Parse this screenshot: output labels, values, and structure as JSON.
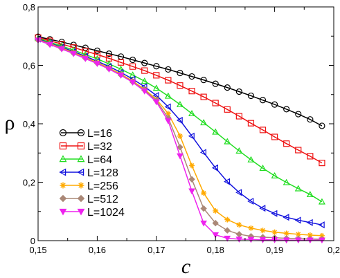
{
  "chart_data": {
    "type": "line",
    "xlabel": "c",
    "ylabel": "ρ",
    "xlim": [
      0.15,
      0.2
    ],
    "ylim": [
      0,
      0.8
    ],
    "x_ticks": [
      0.15,
      0.16,
      0.17,
      0.18,
      0.19,
      0.2
    ],
    "x_tick_labels": [
      "0,15",
      "0,16",
      "0,17",
      "0,18",
      "0,19",
      "0,2"
    ],
    "y_ticks": [
      0,
      0.2,
      0.4,
      0.6,
      0.8
    ],
    "y_tick_labels": [
      "0",
      "0,2",
      "0,4",
      "0,6",
      "0,8"
    ],
    "grid": false,
    "legend_position": "lower-left",
    "x": [
      0.15,
      0.152,
      0.154,
      0.156,
      0.158,
      0.16,
      0.162,
      0.164,
      0.166,
      0.168,
      0.17,
      0.172,
      0.174,
      0.176,
      0.178,
      0.18,
      0.182,
      0.184,
      0.186,
      0.188,
      0.19,
      0.192,
      0.194,
      0.196,
      0.198
    ],
    "series": [
      {
        "name": "L=16",
        "color": "#000000",
        "marker": "circle",
        "values": [
          0.698,
          0.689,
          0.68,
          0.67,
          0.66,
          0.65,
          0.64,
          0.63,
          0.619,
          0.608,
          0.597,
          0.586,
          0.574,
          0.562,
          0.55,
          0.537,
          0.524,
          0.51,
          0.496,
          0.481,
          0.466,
          0.45,
          0.433,
          0.415,
          0.393
        ]
      },
      {
        "name": "L=32",
        "color": "#ee1111",
        "marker": "square",
        "values": [
          0.695,
          0.684,
          0.673,
          0.661,
          0.649,
          0.637,
          0.624,
          0.61,
          0.596,
          0.582,
          0.566,
          0.549,
          0.531,
          0.512,
          0.492,
          0.471,
          0.449,
          0.426,
          0.402,
          0.379,
          0.355,
          0.332,
          0.31,
          0.289,
          0.266
        ]
      },
      {
        "name": "L=64",
        "color": "#22dd22",
        "marker": "triangle-up",
        "values": [
          0.692,
          0.679,
          0.666,
          0.652,
          0.637,
          0.622,
          0.605,
          0.587,
          0.567,
          0.546,
          0.522,
          0.495,
          0.466,
          0.435,
          0.404,
          0.372,
          0.339,
          0.307,
          0.277,
          0.248,
          0.222,
          0.199,
          0.178,
          0.158,
          0.133
        ]
      },
      {
        "name": "L=128",
        "color": "#1111dd",
        "marker": "triangle-left",
        "values": [
          0.69,
          0.676,
          0.662,
          0.647,
          0.631,
          0.614,
          0.596,
          0.576,
          0.553,
          0.527,
          0.497,
          0.458,
          0.412,
          0.358,
          0.302,
          0.249,
          0.202,
          0.165,
          0.135,
          0.111,
          0.093,
          0.08,
          0.07,
          0.062,
          0.054
        ]
      },
      {
        "name": "L=256",
        "color": "#ffaa00",
        "marker": "star",
        "values": [
          0.688,
          0.674,
          0.659,
          0.644,
          0.627,
          0.61,
          0.591,
          0.57,
          0.546,
          0.518,
          0.484,
          0.435,
          0.358,
          0.257,
          0.163,
          0.102,
          0.072,
          0.054,
          0.043,
          0.035,
          0.029,
          0.025,
          0.022,
          0.019,
          0.017
        ]
      },
      {
        "name": "L=512",
        "color": "#aa8877",
        "marker": "diamond",
        "values": [
          0.687,
          0.672,
          0.657,
          0.641,
          0.624,
          0.607,
          0.588,
          0.567,
          0.543,
          0.515,
          0.48,
          0.42,
          0.32,
          0.21,
          0.11,
          0.06,
          0.035,
          0.022,
          0.015,
          0.012,
          0.01,
          0.008,
          0.007,
          0.006,
          0.005
        ]
      },
      {
        "name": "L=1024",
        "color": "#ee22ee",
        "marker": "triangle-down",
        "values": [
          0.686,
          0.671,
          0.656,
          0.64,
          0.623,
          0.606,
          0.587,
          0.566,
          0.542,
          0.512,
          0.475,
          0.41,
          0.29,
          0.17,
          0.06,
          0.02,
          0.008,
          0.005,
          0.004,
          0.003,
          0.003,
          0.002,
          0.002,
          0.002,
          0.002
        ]
      }
    ]
  }
}
